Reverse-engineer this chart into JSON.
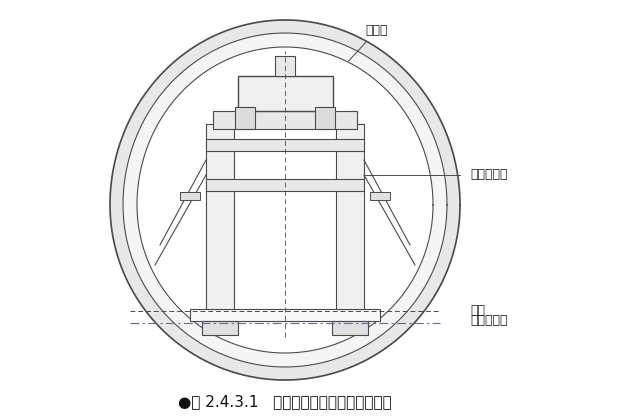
{
  "bg_color": "#ffffff",
  "line_color": "#4a4a4a",
  "light_line_color": "#888888",
  "dashed_line_color": "#888888",
  "fill_color": "#f0f0f0",
  "fill_color2": "#e8e8e8",
  "title": "●图 2.4.3.1   区间隧道模板台车支撑立面图",
  "title_fontsize": 11,
  "label_加高盒": "加高盒",
  "label_二衬混凝土": "二衬混凝土",
  "label_轨顶": "轨顶",
  "label_矮边墙顶面": "矮边墙顶面",
  "annotation_fontsize": 9
}
